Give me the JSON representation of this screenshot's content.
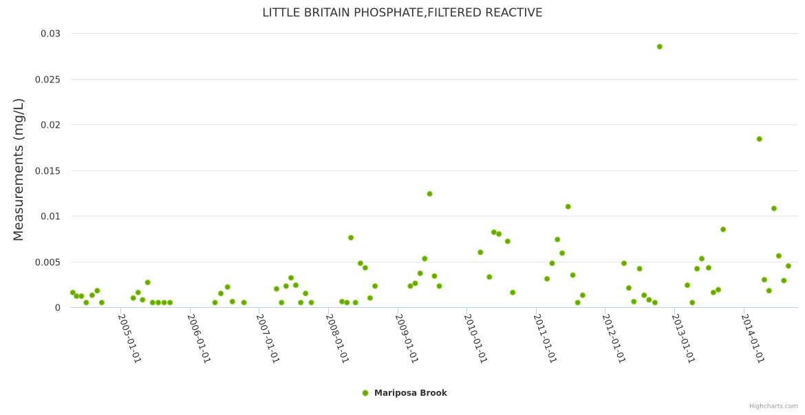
{
  "chart_data": {
    "type": "scatter",
    "title": "LITTLE BRITAIN PHOSPHATE,FILTERED REACTIVE",
    "xlabel": "",
    "ylabel": "Measurements (mg/L)",
    "ylim": [
      0,
      0.03
    ],
    "xlim": [
      "2004-04-15",
      "2014-10-15"
    ],
    "yticks": [
      "0",
      "0.005",
      "0.01",
      "0.015",
      "0.02",
      "0.025",
      "0.03"
    ],
    "xticks": [
      "2005-01-01",
      "2006-01-01",
      "2007-01-01",
      "2008-01-01",
      "2009-01-01",
      "2010-01-01",
      "2011-01-01",
      "2012-01-01",
      "2013-01-01",
      "2014-01-01"
    ],
    "legend": {
      "position": "bottom-center"
    },
    "series": [
      {
        "name": "Mariposa Brook",
        "color": "#6aa30a",
        "edge_color": "#8ccf1e",
        "points": [
          [
            "2004-04-25",
            0.0016
          ],
          [
            "2004-05-15",
            0.0012
          ],
          [
            "2004-06-10",
            0.0012
          ],
          [
            "2004-07-05",
            0.0005
          ],
          [
            "2004-08-05",
            0.0013
          ],
          [
            "2004-09-01",
            0.0018
          ],
          [
            "2004-09-25",
            0.0005
          ],
          [
            "2005-03-10",
            0.001
          ],
          [
            "2005-04-05",
            0.0016
          ],
          [
            "2005-04-28",
            0.0008
          ],
          [
            "2005-05-25",
            0.0027
          ],
          [
            "2005-06-20",
            0.0005
          ],
          [
            "2005-07-20",
            0.0005
          ],
          [
            "2005-08-20",
            0.0005
          ],
          [
            "2005-09-20",
            0.0005
          ],
          [
            "2006-05-15",
            0.0005
          ],
          [
            "2006-06-15",
            0.0015
          ],
          [
            "2006-07-20",
            0.0022
          ],
          [
            "2006-08-15",
            0.0006
          ],
          [
            "2006-10-15",
            0.0005
          ],
          [
            "2007-04-05",
            0.002
          ],
          [
            "2007-05-01",
            0.0005
          ],
          [
            "2007-05-25",
            0.0023
          ],
          [
            "2007-06-20",
            0.0032
          ],
          [
            "2007-07-15",
            0.0024
          ],
          [
            "2007-08-10",
            0.0005
          ],
          [
            "2007-09-05",
            0.0015
          ],
          [
            "2007-10-05",
            0.0005
          ],
          [
            "2008-03-15",
            0.0006
          ],
          [
            "2008-04-10",
            0.0005
          ],
          [
            "2008-05-01",
            0.0076
          ],
          [
            "2008-05-25",
            0.0005
          ],
          [
            "2008-06-20",
            0.0048
          ],
          [
            "2008-07-15",
            0.0043
          ],
          [
            "2008-08-10",
            0.001
          ],
          [
            "2008-09-05",
            0.0023
          ],
          [
            "2009-03-10",
            0.0023
          ],
          [
            "2009-04-05",
            0.0026
          ],
          [
            "2009-05-01",
            0.0037
          ],
          [
            "2009-05-25",
            0.0053
          ],
          [
            "2009-06-20",
            0.0124
          ],
          [
            "2009-07-15",
            0.0034
          ],
          [
            "2009-08-10",
            0.0023
          ],
          [
            "2010-03-15",
            0.006
          ],
          [
            "2010-05-01",
            0.0033
          ],
          [
            "2010-05-25",
            0.0082
          ],
          [
            "2010-06-20",
            0.008
          ],
          [
            "2010-08-05",
            0.0072
          ],
          [
            "2010-09-01",
            0.0016
          ],
          [
            "2011-03-01",
            0.0031
          ],
          [
            "2011-03-28",
            0.0048
          ],
          [
            "2011-04-25",
            0.0074
          ],
          [
            "2011-05-20",
            0.0059
          ],
          [
            "2011-06-20",
            0.011
          ],
          [
            "2011-07-15",
            0.0035
          ],
          [
            "2011-08-10",
            0.0005
          ],
          [
            "2011-09-05",
            0.0013
          ],
          [
            "2012-04-10",
            0.0048
          ],
          [
            "2012-05-05",
            0.0021
          ],
          [
            "2012-06-01",
            0.0006
          ],
          [
            "2012-07-01",
            0.0042
          ],
          [
            "2012-07-25",
            0.0013
          ],
          [
            "2012-08-20",
            0.0008
          ],
          [
            "2012-09-20",
            0.0005
          ],
          [
            "2012-10-15",
            0.0285
          ],
          [
            "2013-03-10",
            0.0024
          ],
          [
            "2013-04-05",
            0.0005
          ],
          [
            "2013-04-30",
            0.0042
          ],
          [
            "2013-05-25",
            0.0053
          ],
          [
            "2013-06-30",
            0.0043
          ],
          [
            "2013-07-25",
            0.0016
          ],
          [
            "2013-08-20",
            0.0019
          ],
          [
            "2013-09-15",
            0.0085
          ],
          [
            "2014-03-25",
            0.0184
          ],
          [
            "2014-04-20",
            0.003
          ],
          [
            "2014-05-15",
            0.0018
          ],
          [
            "2014-06-10",
            0.0108
          ],
          [
            "2014-07-05",
            0.0056
          ],
          [
            "2014-08-01",
            0.0029
          ],
          [
            "2014-08-25",
            0.0045
          ]
        ]
      }
    ]
  },
  "credits": "Highcharts.com"
}
